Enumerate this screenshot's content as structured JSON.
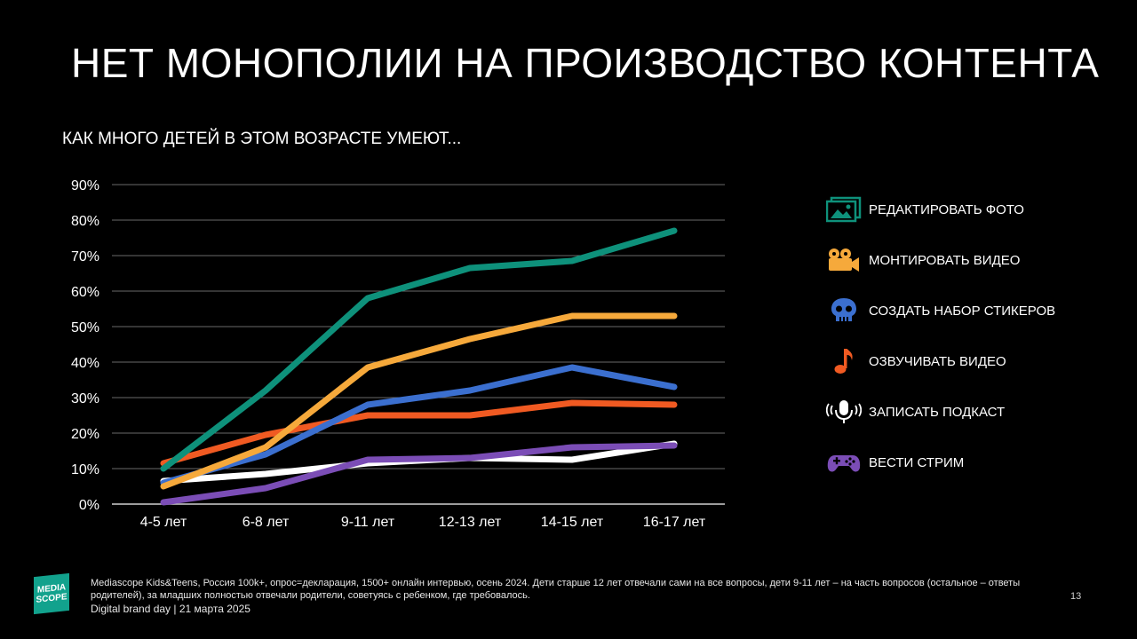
{
  "slide": {
    "title": "НЕТ МОНОПОЛИИ НА ПРОИЗВОДСТВО КОНТЕНТА",
    "subtitle": "КАК МНОГО ДЕТЕЙ В ЭТОМ ВОЗРАСТЕ УМЕЮТ...",
    "footnote": "Mediascope Kids&Teens, Россия 100k+, опрос=декларация, 1500+ онлайн интервью, осень 2024. Дети старше 12 лет отвечали сами на все вопросы, дети 9-11 лет – на часть вопросов (остальное – ответы родителей), за младших полностью отвечали родители, советуясь с ребенком, где требовалось.",
    "footer": "Digital brand day |  21 марта 2025",
    "page_number": "13",
    "logo": {
      "line1": "MEDIA",
      "line2": "SCOPE",
      "color": "#12a28d"
    }
  },
  "chart_data": {
    "type": "line",
    "categories": [
      "4-5 лет",
      "6-8 лет",
      "9-11 лет",
      "12-13 лет",
      "14-15 лет",
      "16-17 лет"
    ],
    "ylim": [
      0,
      90
    ],
    "yticks": [
      0,
      10,
      20,
      30,
      40,
      50,
      60,
      70,
      80,
      90
    ],
    "yticklabels": [
      "0%",
      "10%",
      "20%",
      "30%",
      "40%",
      "50%",
      "60%",
      "70%",
      "80%",
      "90%"
    ],
    "grid": true,
    "legend_position": "right",
    "series": [
      {
        "name": "РЕДАКТИРОВАТЬ ФОТО",
        "color": "#0e917b",
        "icon": "photo-icon",
        "values": [
          10,
          32,
          58,
          66.5,
          68.5,
          77
        ]
      },
      {
        "name": "МОНТИРОВАТЬ ВИДЕО",
        "color": "#f6a93b",
        "icon": "video-camera-icon",
        "values": [
          5,
          16,
          38.5,
          46.5,
          53,
          53
        ]
      },
      {
        "name": "СОЗДАТЬ НАБОР СТИКЕРОВ",
        "color": "#3b6fcf",
        "icon": "skull-icon",
        "values": [
          6,
          14,
          28,
          32,
          38.5,
          33
        ]
      },
      {
        "name": "ОЗВУЧИВАТЬ ВИДЕО",
        "color": "#f05a22",
        "icon": "music-note-icon",
        "values": [
          11.5,
          19.5,
          25,
          25,
          28.5,
          28
        ]
      },
      {
        "name": "ЗАПИСАТЬ ПОДКАСТ",
        "color": "#ffffff",
        "icon": "microphone-icon",
        "values": [
          6.5,
          8.5,
          11.5,
          13,
          12.5,
          17
        ]
      },
      {
        "name": "ВЕСТИ СТРИМ",
        "color": "#7b4db6",
        "icon": "gamepad-icon",
        "values": [
          0.5,
          4.5,
          12.5,
          13,
          16,
          16.5
        ]
      }
    ]
  }
}
